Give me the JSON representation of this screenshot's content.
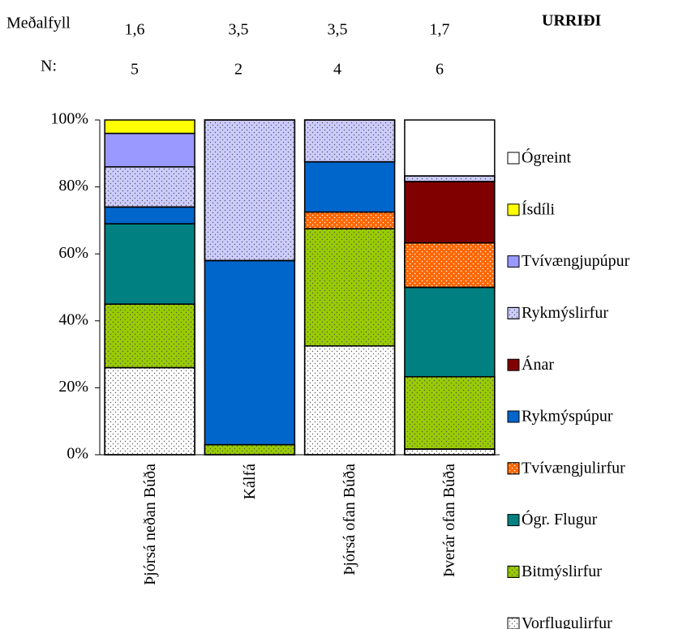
{
  "chart_data": {
    "type": "stacked-bar",
    "title": "URRIÐI",
    "mean_label": "Meðalfyll",
    "mean_values": [
      "1,6",
      "3,5",
      "3,5",
      "1,7"
    ],
    "n_label": "N:",
    "n_values": [
      5,
      2,
      4,
      6
    ],
    "categories": [
      "Þjórsá neðan Búða",
      "Kálfá",
      "Þjórsá ofan Búða",
      "Þverár ofan Búða"
    ],
    "series": [
      {
        "name": "Vorflugulirfur",
        "color": "#ffffff",
        "dotted": true,
        "values": [
          26,
          0,
          32.5,
          1.7
        ]
      },
      {
        "name": "Bitmýslirfur",
        "color": "#99cc00",
        "dotted": true,
        "values": [
          19,
          3,
          35,
          21.6
        ]
      },
      {
        "name": "Ógr. Flugur",
        "color": "#008080",
        "dotted": false,
        "values": [
          24,
          0,
          0,
          26.7
        ]
      },
      {
        "name": "Tvívængjulirfur",
        "color": "#ff6600",
        "dotted": true,
        "values": [
          0,
          0,
          5,
          13.3
        ]
      },
      {
        "name": "Rykmýspúpur",
        "color": "#0066cc",
        "dotted": false,
        "values": [
          5,
          55,
          15,
          0
        ]
      },
      {
        "name": "Ánar",
        "color": "#800000",
        "dotted": false,
        "values": [
          0,
          0,
          0,
          18.3
        ]
      },
      {
        "name": "Rykmýslirfur",
        "color": "#ccccff",
        "dotted": true,
        "values": [
          12,
          42,
          12.5,
          1.7
        ]
      },
      {
        "name": "Tvívængjupúpur",
        "color": "#9999ff",
        "dotted": false,
        "values": [
          10,
          0,
          0,
          0
        ]
      },
      {
        "name": "Ísdíli",
        "color": "#ffff00",
        "dotted": false,
        "values": [
          4,
          0,
          0,
          0
        ]
      },
      {
        "name": "Ógreint",
        "color": "#ffffff",
        "dotted": false,
        "values": [
          0,
          0,
          0,
          16.7
        ]
      }
    ],
    "ylim": [
      0,
      100
    ],
    "yticks": [
      {
        "value": 0,
        "label": "0%"
      },
      {
        "value": 20,
        "label": "20%"
      },
      {
        "value": 40,
        "label": "40%"
      },
      {
        "value": 60,
        "label": "60%"
      },
      {
        "value": 80,
        "label": "80%"
      },
      {
        "value": 100,
        "label": "100%"
      }
    ]
  }
}
